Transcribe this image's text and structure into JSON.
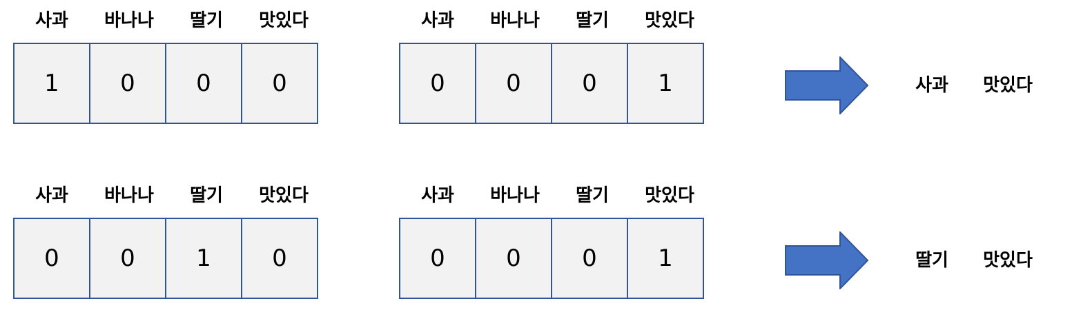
{
  "rows": [
    {
      "vectors": [
        {
          "labels": [
            "사과",
            "바나나",
            "딸기",
            "맛있다"
          ],
          "values": [
            "1",
            "0",
            "0",
            "0"
          ]
        },
        {
          "labels": [
            "사과",
            "바나나",
            "딸기",
            "맛있다"
          ],
          "values": [
            "0",
            "0",
            "0",
            "1"
          ]
        }
      ],
      "result": [
        "사과",
        "맛있다"
      ]
    },
    {
      "vectors": [
        {
          "labels": [
            "사과",
            "바나나",
            "딸기",
            "맛있다"
          ],
          "values": [
            "0",
            "0",
            "1",
            "0"
          ]
        },
        {
          "labels": [
            "사과",
            "바나나",
            "딸기",
            "맛있다"
          ],
          "values": [
            "0",
            "0",
            "0",
            "1"
          ]
        }
      ],
      "result": [
        "딸기",
        "맛있다"
      ]
    }
  ],
  "colors": {
    "cell_fill": "#f2f2f2",
    "cell_border": "#2f5597",
    "arrow_fill": "#4472c4",
    "arrow_stroke": "#2f5597"
  },
  "icons": {
    "arrow": "right-arrow-icon"
  }
}
